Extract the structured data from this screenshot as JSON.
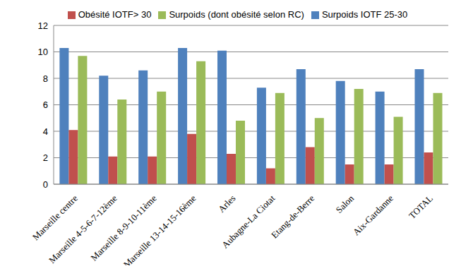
{
  "chart_data": {
    "type": "bar",
    "categories": [
      "Marseille centre",
      "Marseille 4-5-6-7-12ème",
      "Marseille 8-9-10-11ème",
      "Marseille 13-14-15-16ème",
      "Arles",
      "Aubagne-La Ciotat",
      "Etang-de-Berre",
      "Salon",
      "Aix-Gardanne",
      "TOTAL"
    ],
    "series": [
      {
        "name": "Surpoids IOTF 25-30",
        "color": "#4f81bd",
        "values": [
          10.3,
          8.2,
          8.6,
          10.3,
          10.1,
          7.3,
          8.7,
          7.8,
          7.0,
          8.7
        ]
      },
      {
        "name": "Obésité IOTF> 30",
        "color": "#c0504d",
        "values": [
          4.1,
          2.1,
          2.1,
          3.8,
          2.3,
          1.2,
          2.8,
          1.5,
          1.5,
          2.4
        ]
      },
      {
        "name": "Surpoids (dont obésité selon RC)",
        "color": "#9bbb59",
        "values": [
          9.7,
          6.4,
          7.0,
          9.3,
          4.8,
          6.9,
          5.0,
          7.2,
          5.1,
          6.9
        ]
      }
    ],
    "ylim": [
      0,
      12
    ],
    "yticks": [
      0,
      2,
      4,
      6,
      8,
      10,
      12
    ],
    "grid": true,
    "legend": "top"
  }
}
